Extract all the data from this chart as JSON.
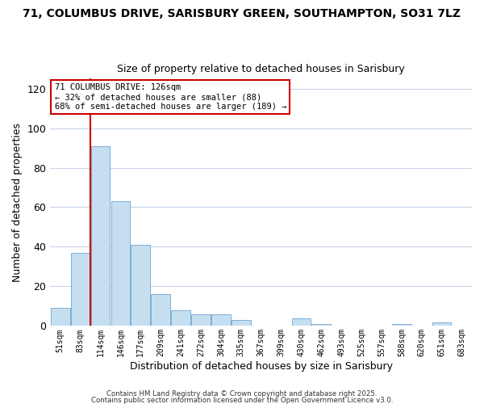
{
  "title_line1": "71, COLUMBUS DRIVE, SARISBURY GREEN, SOUTHAMPTON, SO31 7LZ",
  "title_line2": "Size of property relative to detached houses in Sarisbury",
  "xlabel": "Distribution of detached houses by size in Sarisbury",
  "ylabel": "Number of detached properties",
  "bar_labels": [
    "51sqm",
    "83sqm",
    "114sqm",
    "146sqm",
    "177sqm",
    "209sqm",
    "241sqm",
    "272sqm",
    "304sqm",
    "335sqm",
    "367sqm",
    "399sqm",
    "430sqm",
    "462sqm",
    "493sqm",
    "525sqm",
    "557sqm",
    "588sqm",
    "620sqm",
    "651sqm",
    "683sqm"
  ],
  "bar_values": [
    9,
    37,
    91,
    63,
    41,
    16,
    8,
    6,
    6,
    3,
    0,
    0,
    4,
    1,
    0,
    0,
    0,
    1,
    0,
    2,
    0
  ],
  "bar_color": "#c6dff0",
  "bar_edge_color": "#7aaed6",
  "vline_color": "#cc0000",
  "vline_x_index": 2,
  "annotation_text": "71 COLUMBUS DRIVE: 126sqm\n← 32% of detached houses are smaller (88)\n68% of semi-detached houses are larger (189) →",
  "annotation_box_color": "#ffffff",
  "annotation_box_edge": "#cc0000",
  "ylim": [
    0,
    125
  ],
  "yticks": [
    0,
    20,
    40,
    60,
    80,
    100,
    120
  ],
  "background_color": "#ffffff",
  "grid_color": "#c8d4e8",
  "footer_line1": "Contains HM Land Registry data © Crown copyright and database right 2025.",
  "footer_line2": "Contains public sector information licensed under the Open Government Licence v3.0."
}
